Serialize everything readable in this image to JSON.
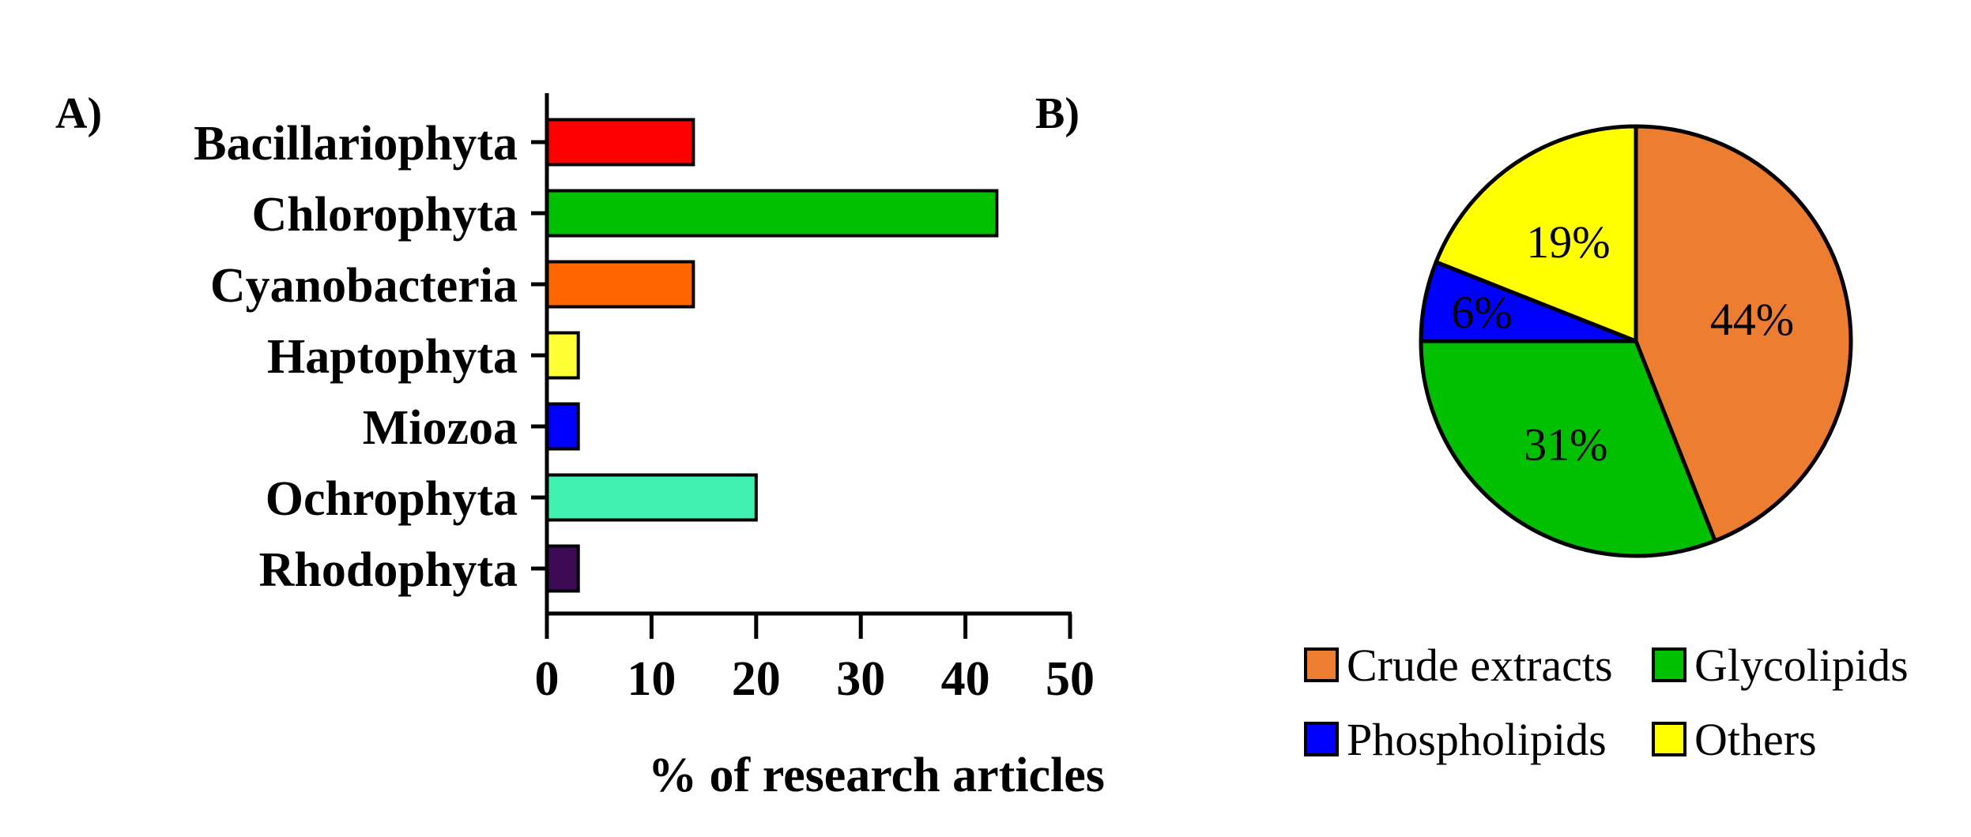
{
  "chart_data": [
    {
      "panel_label": "A)",
      "type": "bar",
      "orientation": "horizontal",
      "categories": [
        "Bacillariophyta",
        "Chlorophyta",
        "Cyanobacteria",
        "Haptophyta",
        "Miozoa",
        "Ochrophyta",
        "Rhodophyta"
      ],
      "values": [
        14,
        43,
        14,
        3,
        3,
        20,
        3
      ],
      "colors": [
        "#ff0000",
        "#00c000",
        "#ff6600",
        "#ffff33",
        "#0000ff",
        "#40f0b0",
        "#3d0a55"
      ],
      "xlabel": "% of research articles",
      "ylabel": "",
      "xlim": [
        0,
        50
      ],
      "xticks": [
        0,
        10,
        20,
        30,
        40,
        50
      ],
      "grid": false
    },
    {
      "panel_label": "B)",
      "type": "pie",
      "slices": [
        {
          "name": "Crude extracts",
          "value": 44,
          "label": "44%",
          "color": "#ed7d31"
        },
        {
          "name": "Glycolipids",
          "value": 31,
          "label": "31%",
          "color": "#00c000"
        },
        {
          "name": "Phospholipids",
          "value": 6,
          "label": "6%",
          "color": "#0000ff"
        },
        {
          "name": "Others",
          "value": 19,
          "label": "19%",
          "color": "#ffff00"
        }
      ],
      "legend_position": "bottom"
    }
  ]
}
